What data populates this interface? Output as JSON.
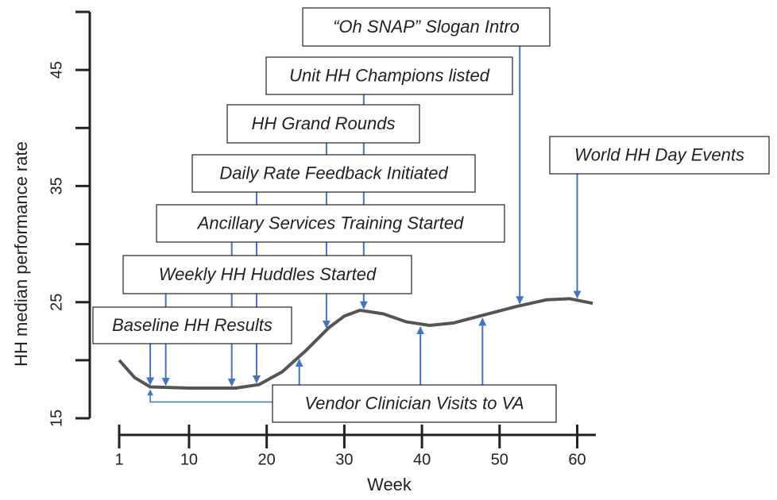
{
  "chart_data": {
    "type": "line",
    "x_label": "Week",
    "y_label": "HH median performance rate",
    "x": [
      1,
      3,
      5,
      10,
      16,
      19,
      22,
      25,
      28,
      30,
      32,
      35,
      38,
      41,
      44,
      48,
      52,
      56,
      59,
      62
    ],
    "values": [
      20.0,
      18.5,
      17.7,
      17.6,
      17.6,
      17.9,
      19.0,
      20.8,
      22.8,
      23.8,
      24.3,
      24.0,
      23.3,
      23.0,
      23.2,
      23.9,
      24.6,
      25.2,
      25.3,
      24.9
    ],
    "color": "#555555",
    "xlim": [
      1,
      62.4
    ],
    "xticks": [
      1,
      10,
      20,
      30,
      40,
      50,
      60
    ],
    "ylim": [
      15,
      50
    ],
    "yticks": [
      15,
      25,
      35,
      45
    ],
    "y_minor_ticks": [
      20,
      30,
      40,
      50
    ],
    "annotation_color": "#4472c4",
    "annotations": [
      {
        "text": "Baseline HH Results",
        "weeks": [
          5
        ]
      },
      {
        "text": "Weekly HH Huddles Started",
        "weeks": [
          7
        ]
      },
      {
        "text": "Ancillary Services Training Started",
        "weeks": [
          15.5
        ]
      },
      {
        "text": "Daily Rate Feedback Initiated",
        "weeks": [
          18.7
        ]
      },
      {
        "text": "HH Grand Rounds",
        "weeks": [
          27.7
        ]
      },
      {
        "text": "Unit HH Champions listed",
        "weeks": [
          32.5
        ]
      },
      {
        "text": "“Oh SNAP” Slogan Intro",
        "weeks": [
          52.6
        ]
      },
      {
        "text": "World HH Day Events",
        "weeks": [
          60
        ]
      },
      {
        "text": "Vendor Clinician Visits to VA",
        "weeks": [
          5,
          24.2,
          39.8,
          47.8
        ]
      }
    ]
  }
}
